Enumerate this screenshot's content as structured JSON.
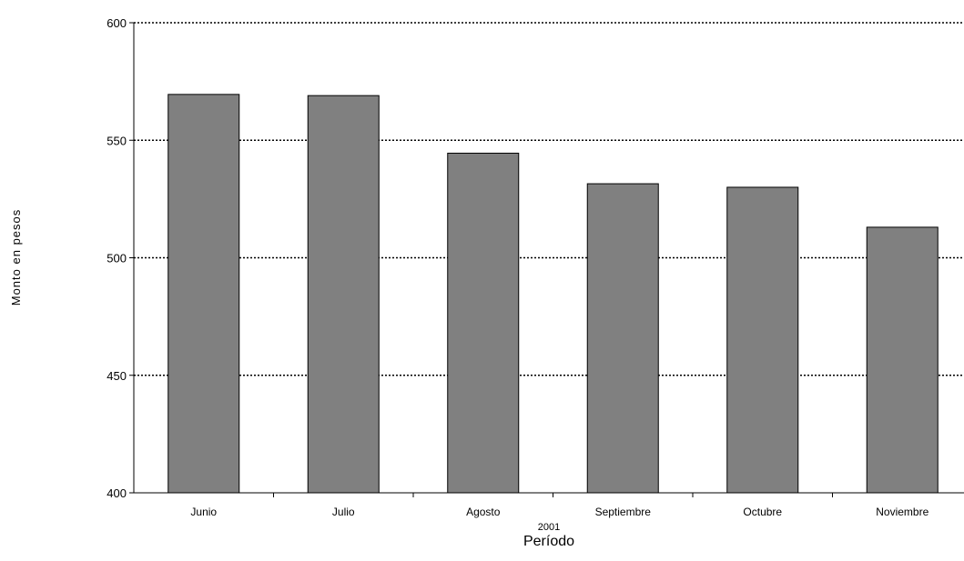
{
  "chart_data": {
    "type": "bar",
    "categories": [
      "Junio",
      "Julio",
      "Agosto",
      "Septiembre",
      "Octubre",
      "Noviembre"
    ],
    "values": [
      569.5,
      569,
      544.5,
      531.5,
      530,
      513
    ],
    "ylabel": "Monto en pesos",
    "xlabel": "Período",
    "xgroup_label": "2001",
    "ylim": [
      400,
      600
    ],
    "yticks": [
      "400",
      "450",
      "500",
      "550",
      "600"
    ],
    "grid": "horizontal-dotted",
    "legend": "none",
    "bar_color": "#808080"
  }
}
